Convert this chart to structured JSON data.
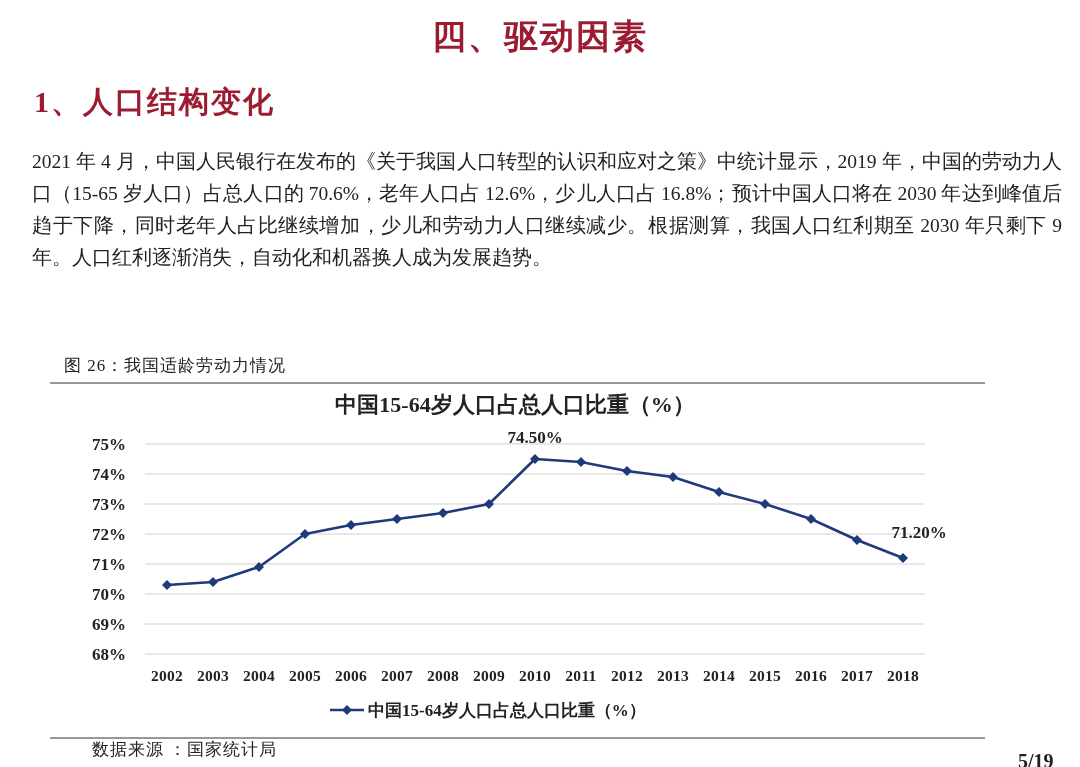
{
  "chart_data": {
    "type": "line",
    "title": "中国15-64岁人口占总人口比重（%）",
    "annotations": [
      "四、驱动因素",
      "1、人口结构变化",
      "2021 年 4 月，中国人民银行在发布的《关于我国人口转型的认识和应对之策》中统计显示，2019 年，中国的劳动力人口（15-65 岁人口）占总人口的 70.6%，老年人口占 12.6%，少儿人口占 16.8%；预计中国人口将在 2030 年达到峰值后趋于下降，同时老年人占比继续增加，少儿和劳动力人口继续减少。根据测算，我国人口红利期至 2030 年只剩下 9 年。人口红利逐渐消失，自动化和机器换人成为发展趋势。",
      "图 26：我国适龄劳动力情况",
      "数据来源 ：国家统计局",
      "5/19"
    ],
    "categories": [
      "2002",
      "2003",
      "2004",
      "2005",
      "2006",
      "2007",
      "2008",
      "2009",
      "2010",
      "2011",
      "2012",
      "2013",
      "2014",
      "2015",
      "2016",
      "2017",
      "2018"
    ],
    "series": [
      {
        "name": "中国15-64岁人口占总人口比重（%）",
        "color": "#1f3a7a",
        "values": [
          70.3,
          70.4,
          70.9,
          72.0,
          72.3,
          72.5,
          72.7,
          73.0,
          74.5,
          74.4,
          74.1,
          73.9,
          73.4,
          73.0,
          72.5,
          71.8,
          71.2
        ],
        "value_labels": [
          null,
          null,
          null,
          null,
          null,
          null,
          null,
          null,
          "74.50%",
          null,
          null,
          null,
          null,
          null,
          null,
          null,
          "71.20%"
        ]
      }
    ],
    "ylim": [
      68,
      75
    ],
    "yticks": [
      {
        "value": 68,
        "label": "68%"
      },
      {
        "value": 69,
        "label": "69%"
      },
      {
        "value": 70,
        "label": "70%"
      },
      {
        "value": 71,
        "label": "71%"
      },
      {
        "value": 72,
        "label": "72%"
      },
      {
        "value": 73,
        "label": "73%"
      },
      {
        "value": 74,
        "label": "74%"
      },
      {
        "value": 75,
        "label": "75%"
      }
    ],
    "grid": "y",
    "legend": "bottom",
    "marker": "diamond",
    "line_style": "solid"
  }
}
